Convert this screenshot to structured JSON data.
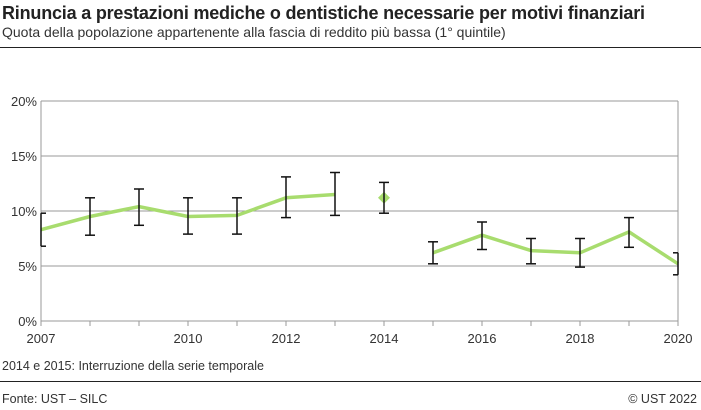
{
  "header": {
    "title": "Rinuncia a prestazioni mediche o dentistiche necessarie per motivi finanziari",
    "subtitle": "Quota della popolazione appartenente alla fascia di reddito più bassa (1° quintile)"
  },
  "footer": {
    "note": "2014 e 2015: Interruzione della serie temporale",
    "source": "Fonte: UST – SILC",
    "copyright": "© UST 2022"
  },
  "chart_data": {
    "type": "line",
    "title": "Rinuncia a prestazioni mediche o dentistiche necessarie per motivi finanziari",
    "subtitle": "Quota della popolazione appartenente alla fascia di reddito più bassa (1° quintile)",
    "xlim": [
      2007,
      2020
    ],
    "ylim": [
      0,
      20
    ],
    "x_ticks": [
      "2007",
      "2010",
      "2012",
      "2014",
      "2016",
      "2018",
      "2020"
    ],
    "y_ticks": [
      "0%",
      "5%",
      "10%",
      "15%",
      "20%"
    ],
    "grid": true,
    "line_color": "#a8dc6e",
    "errorbar_color": "#111111",
    "series": [
      {
        "segment": "2007-2013",
        "marker": "line",
        "points": [
          {
            "x": 2007,
            "y": 8.3,
            "low": 6.8,
            "high": 9.8
          },
          {
            "x": 2008,
            "y": 9.5,
            "low": 7.8,
            "high": 11.2
          },
          {
            "x": 2009,
            "y": 10.4,
            "low": 8.7,
            "high": 12.0
          },
          {
            "x": 2010,
            "y": 9.5,
            "low": 7.9,
            "high": 11.2
          },
          {
            "x": 2011,
            "y": 9.6,
            "low": 7.9,
            "high": 11.2
          },
          {
            "x": 2012,
            "y": 11.2,
            "low": 9.4,
            "high": 13.1
          },
          {
            "x": 2013,
            "y": 11.5,
            "low": 9.6,
            "high": 13.5
          }
        ]
      },
      {
        "segment": "2014",
        "marker": "diamond",
        "points": [
          {
            "x": 2014,
            "y": 11.2,
            "low": 9.8,
            "high": 12.6
          }
        ]
      },
      {
        "segment": "2015-2020",
        "marker": "line",
        "points": [
          {
            "x": 2015,
            "y": 6.2,
            "low": 5.2,
            "high": 7.2
          },
          {
            "x": 2016,
            "y": 7.8,
            "low": 6.5,
            "high": 9.0
          },
          {
            "x": 2017,
            "y": 6.4,
            "low": 5.2,
            "high": 7.5
          },
          {
            "x": 2018,
            "y": 6.2,
            "low": 4.9,
            "high": 7.5
          },
          {
            "x": 2019,
            "y": 8.1,
            "low": 6.7,
            "high": 9.4
          },
          {
            "x": 2020,
            "y": 5.2,
            "low": 4.2,
            "high": 6.2
          }
        ]
      }
    ]
  }
}
